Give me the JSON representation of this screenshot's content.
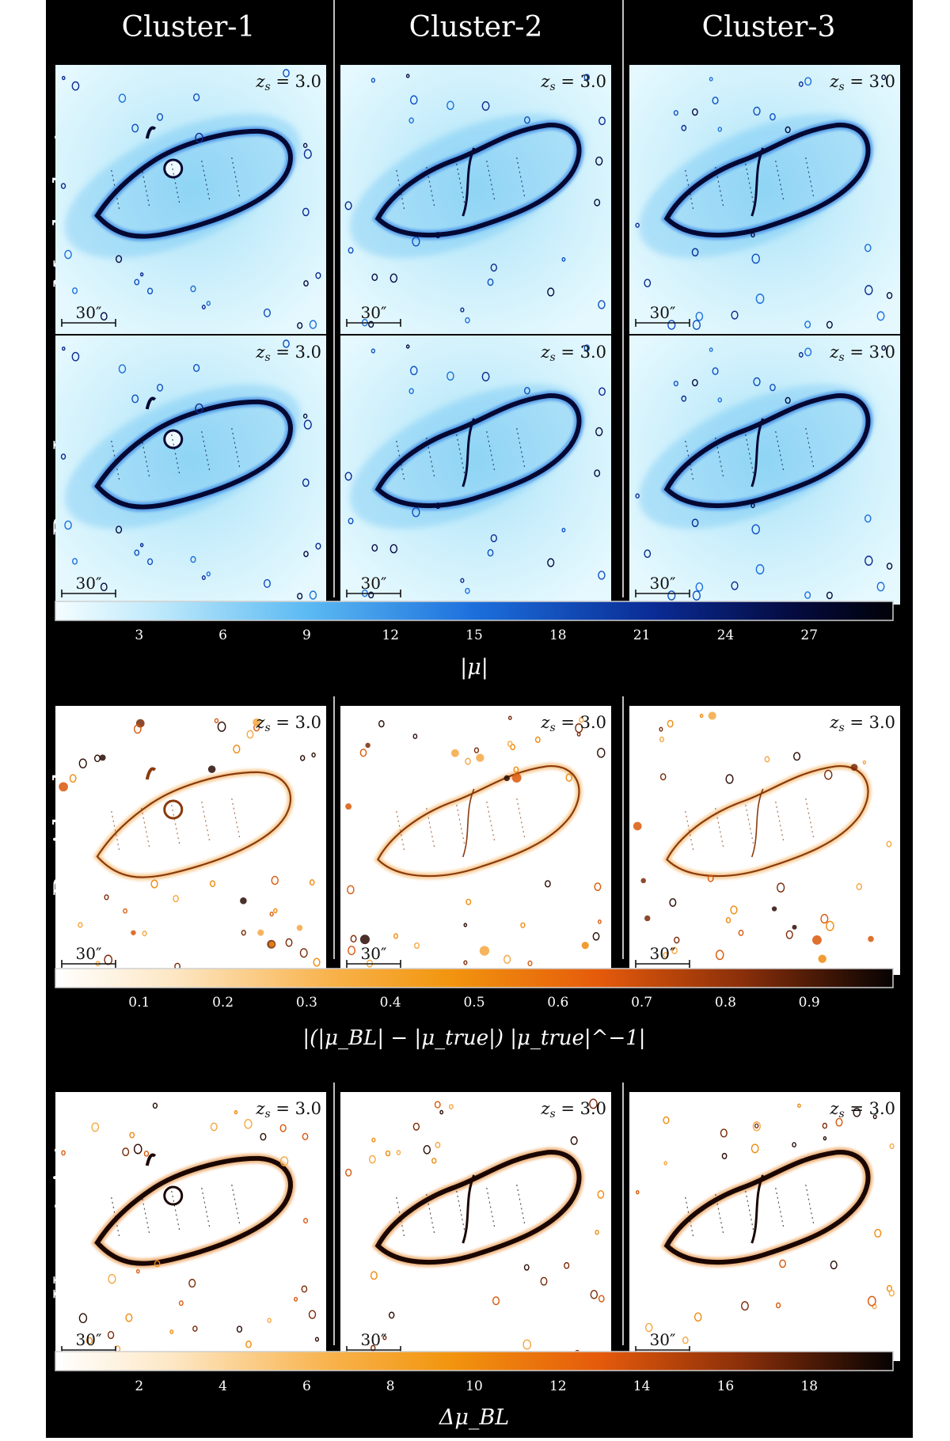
{
  "columns": [
    "Cluster-1",
    "Cluster-2",
    "Cluster-3"
  ],
  "rows": [
    {
      "label": "Mock cluster",
      "cmap": "mu"
    },
    {
      "label": "BayesLens",
      "cmap": "mu"
    },
    {
      "label": "Residuals",
      "cmap": "res"
    },
    {
      "label": "Uncertainty",
      "cmap": "unc"
    }
  ],
  "redshift_label": "z_s = 3.0",
  "redshift_value": "3.0",
  "scalebar_label": "30″",
  "colorbars": [
    {
      "name": "mu",
      "ticks": [
        "3",
        "6",
        "9",
        "12",
        "15",
        "18",
        "21",
        "24",
        "27"
      ],
      "label": "|μ|"
    },
    {
      "name": "residual",
      "ticks": [
        "0.1",
        "0.2",
        "0.3",
        "0.4",
        "0.5",
        "0.6",
        "0.7",
        "0.8",
        "0.9"
      ],
      "label": "|(|μ_BL| − |μ_true|) |μ_true|^−1|"
    },
    {
      "name": "uncertainty",
      "ticks": [
        "2",
        "4",
        "6",
        "8",
        "10",
        "12",
        "14",
        "16",
        "18"
      ],
      "label": "Δμ_BL"
    }
  ],
  "colors": {
    "mu": [
      "#f2fdff",
      "#cdf0fb",
      "#7fcdf6",
      "#2c86e6",
      "#0b2f9a",
      "#020316"
    ],
    "heat": [
      "#ffffff",
      "#fde9c9",
      "#f9b74e",
      "#f08a0e",
      "#d9580a",
      "#7a2a08",
      "#070203"
    ]
  }
}
